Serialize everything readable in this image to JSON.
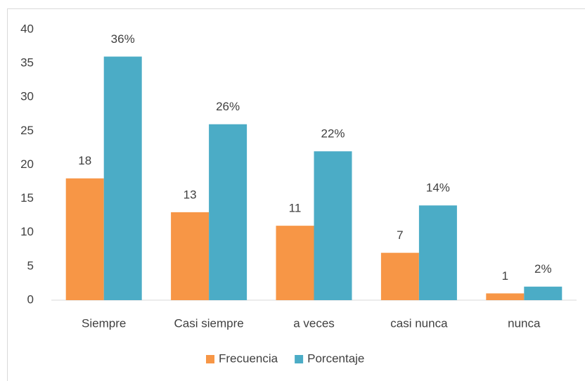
{
  "chart_data": {
    "type": "bar",
    "categories": [
      "Siempre",
      "Casi siempre",
      "a veces",
      "casi nunca",
      "nunca"
    ],
    "series": [
      {
        "name": "Frecuencia",
        "color": "#f79646",
        "values": [
          18,
          13,
          11,
          7,
          1
        ]
      },
      {
        "name": "Porcentaje",
        "color": "#4bacc6",
        "values": [
          36,
          26,
          22,
          14,
          2
        ],
        "value_labels": [
          "36%",
          "26%",
          "22%",
          "14%",
          "2%"
        ]
      }
    ],
    "ylim": [
      0,
      40
    ],
    "yticks": [
      0,
      5,
      10,
      15,
      20,
      25,
      30,
      35,
      40
    ],
    "grid": false,
    "legend": "bottom"
  }
}
